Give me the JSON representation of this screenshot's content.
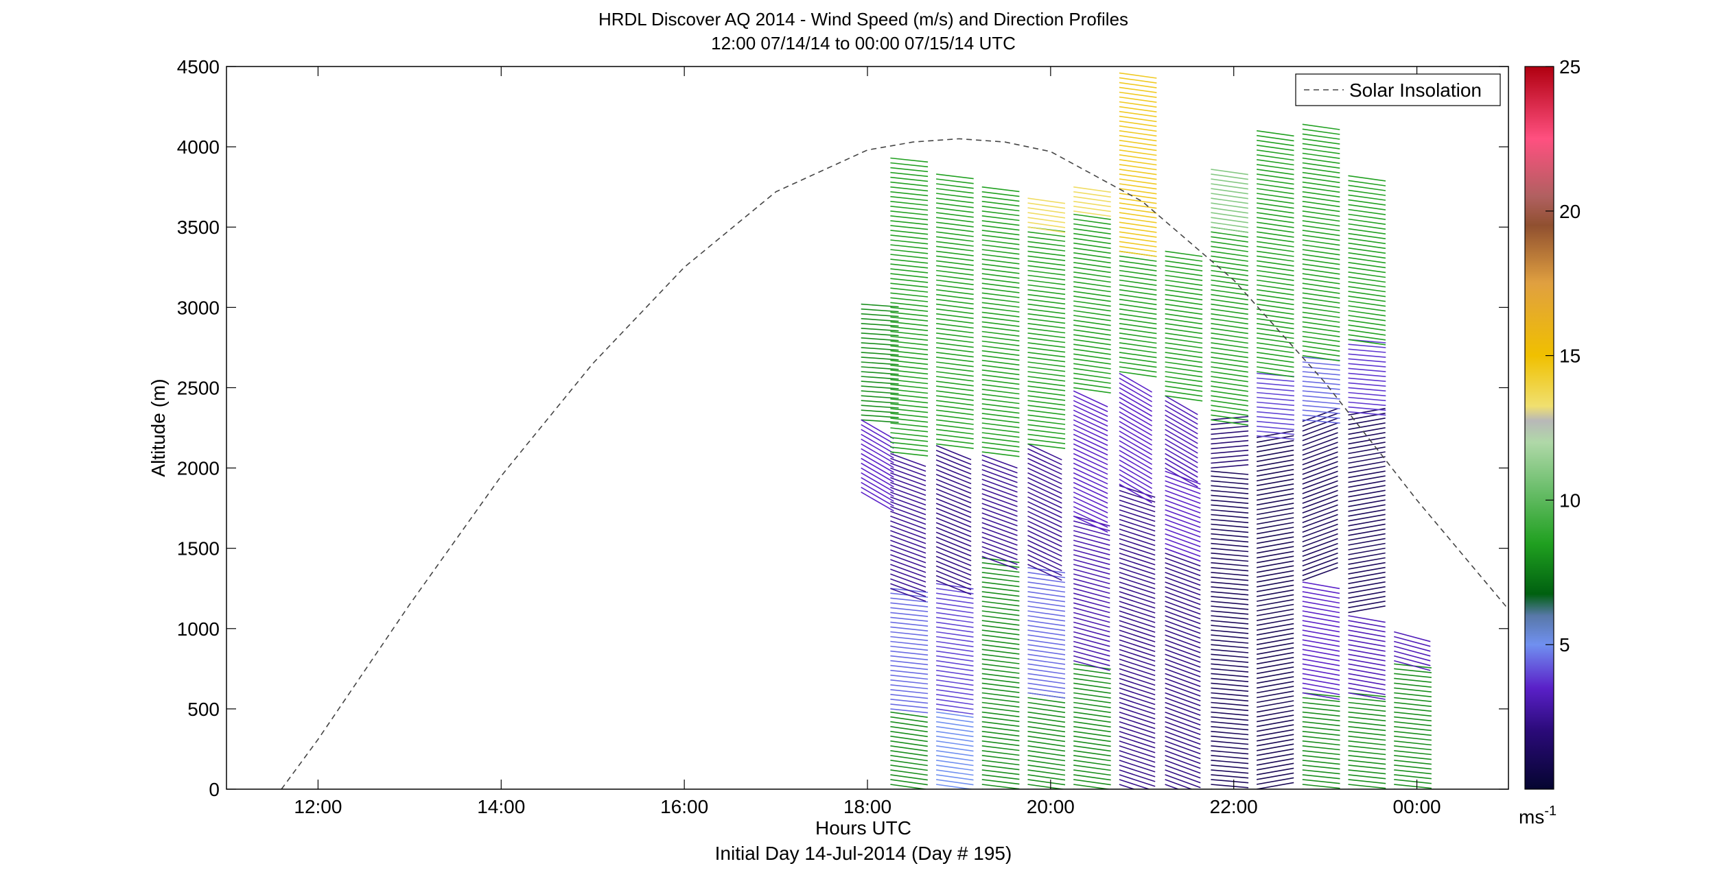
{
  "chart_data": {
    "type": "barb-profile",
    "title": "HRDL Discover AQ 2014 - Wind Speed (m/s) and Direction Profiles",
    "subtitle": "12:00 07/14/14 to 00:00 07/15/14  UTC",
    "xlabel": "Hours UTC",
    "xlabel2": "Initial Day 14-Jul-2014 (Day # 195)",
    "ylabel": "Altitude (m)",
    "xlim": [
      11,
      25
    ],
    "ylim": [
      0,
      4500
    ],
    "xticks": [
      {
        "value": 12,
        "label": "12:00"
      },
      {
        "value": 14,
        "label": "14:00"
      },
      {
        "value": 16,
        "label": "16:00"
      },
      {
        "value": 18,
        "label": "18:00"
      },
      {
        "value": 20,
        "label": "20:00"
      },
      {
        "value": 22,
        "label": "22:00"
      },
      {
        "value": 24,
        "label": "00:00"
      }
    ],
    "yticks": [
      0,
      500,
      1000,
      1500,
      2000,
      2500,
      3000,
      3500,
      4000,
      4500
    ],
    "legend": {
      "label": "Solar Insolation",
      "position": "top-right"
    },
    "solar_insolation": {
      "x": [
        11.6,
        12.0,
        13.0,
        14.0,
        15.0,
        16.0,
        17.0,
        18.0,
        18.5,
        19.0,
        19.5,
        20.0,
        21.0,
        22.0,
        23.0,
        24.0,
        25.0
      ],
      "y": [
        0,
        310,
        1150,
        1950,
        2650,
        3250,
        3720,
        3980,
        4030,
        4050,
        4030,
        3970,
        3660,
        3170,
        2530,
        1800,
        1120
      ]
    },
    "colorbar": {
      "range": [
        0,
        25
      ],
      "ticks": [
        5,
        10,
        15,
        20,
        25
      ],
      "unit_label": "ms",
      "unit_exp": "-1"
    },
    "profiles": [
      {
        "time": 17.93,
        "top": 3020,
        "segments": [
          {
            "from": 2300,
            "to": 3020,
            "speed": 8,
            "angle": -4
          },
          {
            "from": 1850,
            "to": 2300,
            "speed": 3.5,
            "angle": -30
          }
        ]
      },
      {
        "time": 18.25,
        "top": 3950,
        "segments": [
          {
            "from": 0,
            "to": 500,
            "speed": 8,
            "angle": -8
          },
          {
            "from": 500,
            "to": 1250,
            "speed": 4.5,
            "angle": -6
          },
          {
            "from": 1250,
            "to": 2100,
            "speed": 2.5,
            "angle": -20
          },
          {
            "from": 2100,
            "to": 3950,
            "speed": 8.5,
            "angle": -6
          }
        ]
      },
      {
        "time": 18.75,
        "top": 3840,
        "segments": [
          {
            "from": 0,
            "to": 500,
            "speed": 5,
            "angle": -8
          },
          {
            "from": 500,
            "to": 1300,
            "speed": 4,
            "angle": -8
          },
          {
            "from": 1300,
            "to": 2150,
            "speed": 2.2,
            "angle": -22
          },
          {
            "from": 2150,
            "to": 3840,
            "speed": 8.5,
            "angle": -7
          }
        ]
      },
      {
        "time": 19.25,
        "top": 3770,
        "segments": [
          {
            "from": 0,
            "to": 1450,
            "speed": 8,
            "angle": -7
          },
          {
            "from": 1450,
            "to": 2100,
            "speed": 2.5,
            "angle": -20
          },
          {
            "from": 2100,
            "to": 3770,
            "speed": 8.5,
            "angle": -7
          }
        ]
      },
      {
        "time": 19.75,
        "top": 3700,
        "segments": [
          {
            "from": 0,
            "to": 600,
            "speed": 8,
            "angle": -8
          },
          {
            "from": 600,
            "to": 1400,
            "speed": 4.5,
            "angle": -8
          },
          {
            "from": 1400,
            "to": 2150,
            "speed": 2.5,
            "angle": -25
          },
          {
            "from": 2150,
            "to": 3500,
            "speed": 8.5,
            "angle": -7
          },
          {
            "from": 3500,
            "to": 3700,
            "speed": 13.5,
            "angle": -8
          }
        ]
      },
      {
        "time": 20.25,
        "top": 3760,
        "segments": [
          {
            "from": 0,
            "to": 800,
            "speed": 8,
            "angle": -8
          },
          {
            "from": 800,
            "to": 1700,
            "speed": 3,
            "angle": -15
          },
          {
            "from": 1700,
            "to": 2500,
            "speed": 3.5,
            "angle": -25
          },
          {
            "from": 2500,
            "to": 3600,
            "speed": 8.5,
            "angle": -8
          },
          {
            "from": 3600,
            "to": 3760,
            "speed": 13.5,
            "angle": -8
          }
        ]
      },
      {
        "time": 20.75,
        "top": 4480,
        "segments": [
          {
            "from": 0,
            "to": 1900,
            "speed": 2.3,
            "angle": -18
          },
          {
            "from": 1900,
            "to": 2600,
            "speed": 3.5,
            "angle": -30
          },
          {
            "from": 2600,
            "to": 3350,
            "speed": 8.5,
            "angle": -8
          },
          {
            "from": 3350,
            "to": 4480,
            "speed": 14.5,
            "angle": -8
          }
        ]
      },
      {
        "time": 21.25,
        "top": 3350,
        "segments": [
          {
            "from": 0,
            "to": 1500,
            "speed": 2.2,
            "angle": -20
          },
          {
            "from": 1500,
            "to": 2000,
            "speed": 3.5,
            "angle": -20
          },
          {
            "from": 2000,
            "to": 2450,
            "speed": 3.2,
            "angle": -30
          },
          {
            "from": 2450,
            "to": 3350,
            "speed": 8.5,
            "angle": -8
          }
        ]
      },
      {
        "time": 21.75,
        "top": 3860,
        "segments": [
          {
            "from": 0,
            "to": 2000,
            "speed": 1.2,
            "angle": -5
          },
          {
            "from": 2000,
            "to": 2300,
            "speed": 1.8,
            "angle": 5
          },
          {
            "from": 2300,
            "to": 3500,
            "speed": 8.5,
            "angle": -8
          },
          {
            "from": 3500,
            "to": 3860,
            "speed": 11,
            "angle": -8
          }
        ]
      },
      {
        "time": 22.25,
        "top": 4100,
        "segments": [
          {
            "from": 0,
            "to": 2200,
            "speed": 1.0,
            "angle": 10
          },
          {
            "from": 2200,
            "to": 2600,
            "speed": 4,
            "angle": -5
          },
          {
            "from": 2600,
            "to": 4100,
            "speed": 8.5,
            "angle": -8
          }
        ]
      },
      {
        "time": 22.75,
        "top": 4140,
        "segments": [
          {
            "from": 0,
            "to": 600,
            "speed": 8,
            "angle": -6
          },
          {
            "from": 600,
            "to": 1300,
            "speed": 3.5,
            "angle": -10
          },
          {
            "from": 1300,
            "to": 2300,
            "speed": 1.2,
            "angle": 20
          },
          {
            "from": 2300,
            "to": 2700,
            "speed": 4.5,
            "angle": -5
          },
          {
            "from": 2700,
            "to": 4140,
            "speed": 8.5,
            "angle": -8
          }
        ]
      },
      {
        "time": 23.25,
        "top": 3840,
        "segments": [
          {
            "from": 0,
            "to": 600,
            "speed": 8,
            "angle": -6
          },
          {
            "from": 600,
            "to": 1100,
            "speed": 3.2,
            "angle": -10
          },
          {
            "from": 1100,
            "to": 2350,
            "speed": 1.2,
            "angle": 10
          },
          {
            "from": 2350,
            "to": 2800,
            "speed": 3.8,
            "angle": -5
          },
          {
            "from": 2800,
            "to": 3840,
            "speed": 8.5,
            "angle": -8
          }
        ]
      },
      {
        "time": 23.75,
        "top": 980,
        "segments": [
          {
            "from": 0,
            "to": 800,
            "speed": 8,
            "angle": -6
          },
          {
            "from": 800,
            "to": 980,
            "speed": 3.2,
            "angle": -15
          }
        ]
      }
    ]
  }
}
